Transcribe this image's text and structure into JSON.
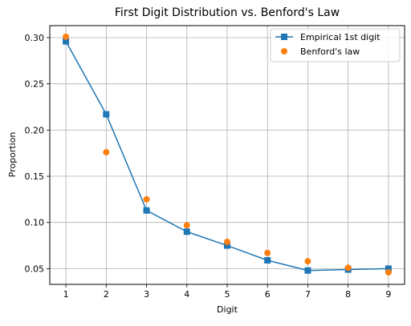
{
  "chart_data": {
    "type": "line",
    "title": "First Digit Distribution vs. Benford's Law",
    "xlabel": "Digit",
    "ylabel": "Proportion",
    "x": [
      1,
      2,
      3,
      4,
      5,
      6,
      7,
      8,
      9
    ],
    "xlim": [
      0.6,
      9.4
    ],
    "ylim": [
      0.033,
      0.313
    ],
    "xticks": [
      "1",
      "2",
      "3",
      "4",
      "5",
      "6",
      "7",
      "8",
      "9"
    ],
    "yticks": [
      "0.05",
      "0.10",
      "0.15",
      "0.20",
      "0.25",
      "0.30"
    ],
    "grid": true,
    "legend_position": "top-right",
    "series": [
      {
        "name": "Empirical 1st digit",
        "style": "line-with-square-markers",
        "color": "#1f77b4",
        "values": [
          0.296,
          0.217,
          0.113,
          0.09,
          0.075,
          0.059,
          0.048,
          0.049,
          0.05
        ]
      },
      {
        "name": "Benford's law",
        "style": "circle-markers",
        "color": "#ff7f0e",
        "values": [
          0.301,
          0.176,
          0.125,
          0.097,
          0.079,
          0.067,
          0.058,
          0.051,
          0.046
        ]
      }
    ]
  }
}
